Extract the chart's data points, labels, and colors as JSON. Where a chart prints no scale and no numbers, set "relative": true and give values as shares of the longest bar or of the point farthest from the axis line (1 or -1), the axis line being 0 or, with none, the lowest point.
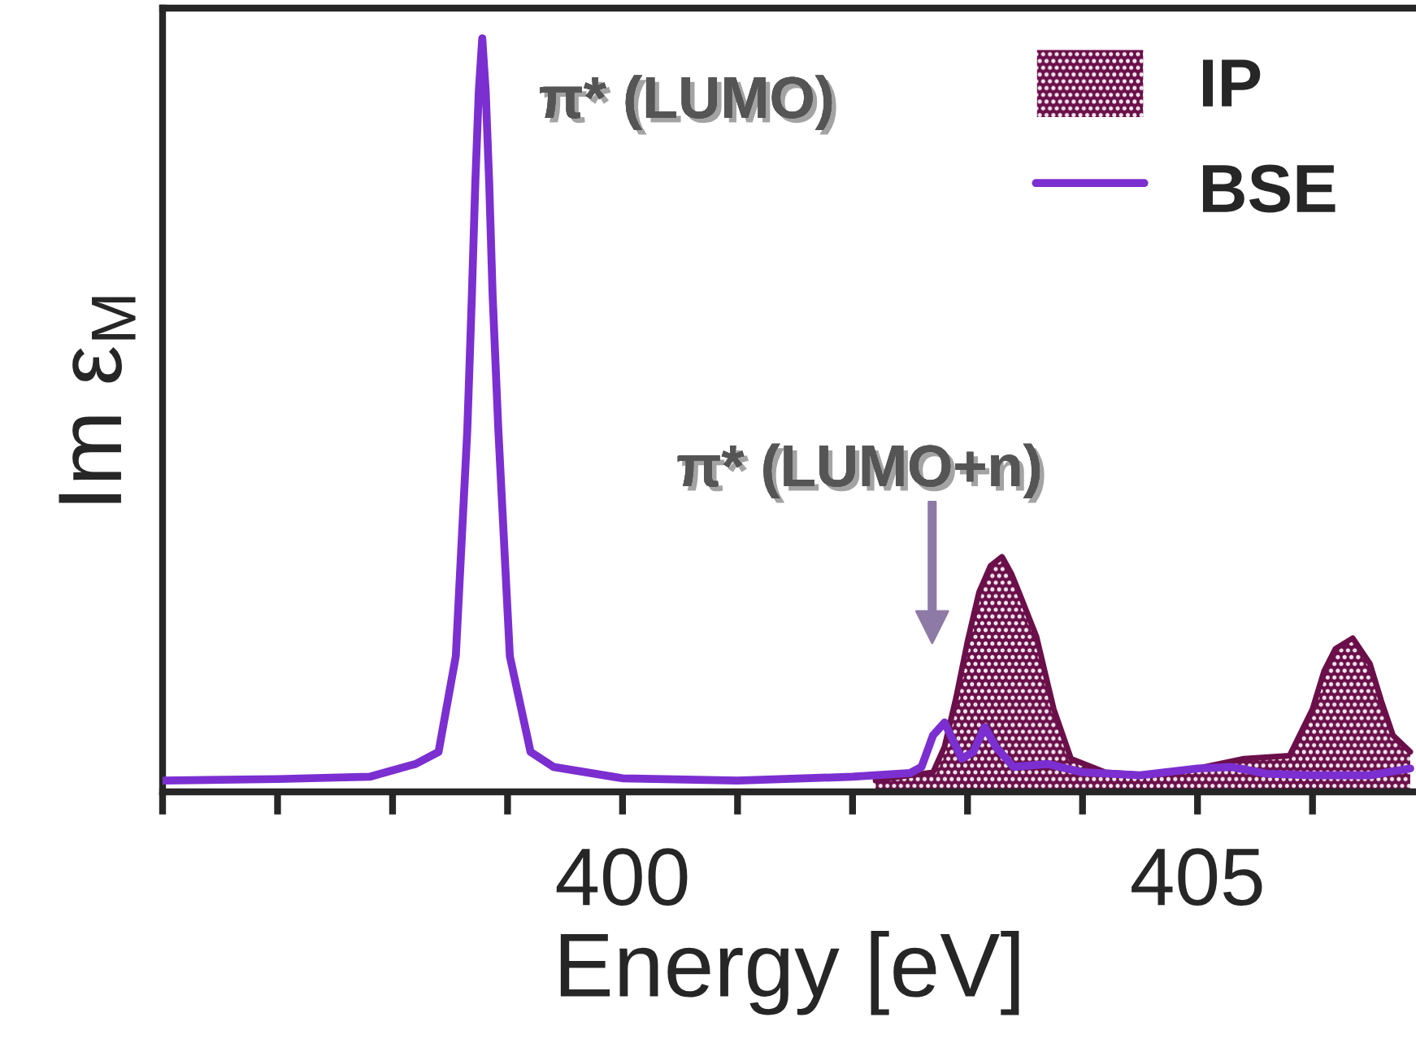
{
  "chart_data": {
    "type": "area",
    "xlabel": "Energy [eV]",
    "ylabel": "Im ε$_{M}$",
    "relative": true,
    "xlim": [
      396,
      406.9
    ],
    "xticks": [
      {
        "value": 396,
        "label": null
      },
      {
        "value": 397,
        "label": null
      },
      {
        "value": 398,
        "label": null
      },
      {
        "value": 399,
        "label": null
      },
      400,
      {
        "value": 401,
        "label": null
      },
      {
        "value": 402,
        "label": null
      },
      {
        "value": 403,
        "label": null
      },
      {
        "value": 404,
        "label": null
      },
      405,
      {
        "value": 406,
        "label": null
      }
    ],
    "legend": "top right",
    "grid": false,
    "annotations": [
      "π* (LUMO)",
      "π* (LUMO+n)"
    ],
    "series": [
      {
        "name": "IP",
        "color": "#6b0f4a",
        "x": [
          402.2,
          402.4,
          402.7,
          402.8,
          402.9,
          403.0,
          403.1,
          403.2,
          403.3,
          403.38,
          403.45,
          403.6,
          403.75,
          403.9,
          404.2,
          404.6,
          405.0,
          405.4,
          405.8,
          406.0,
          406.1,
          406.2,
          406.35,
          406.5,
          406.6,
          406.7,
          406.85
        ],
        "values": [
          0.015,
          0.02,
          0.026,
          0.06,
          0.125,
          0.2,
          0.265,
          0.3,
          0.312,
          0.29,
          0.264,
          0.206,
          0.11,
          0.044,
          0.026,
          0.022,
          0.031,
          0.044,
          0.048,
          0.11,
          0.16,
          0.19,
          0.204,
          0.17,
          0.12,
          0.075,
          0.053
        ]
      },
      {
        "name": "BSE",
        "type": "line",
        "color": "#7b2fd0",
        "x": [
          396.0,
          397.0,
          397.8,
          398.2,
          398.4,
          398.55,
          398.65,
          398.69,
          398.72,
          398.75,
          398.78,
          398.81,
          398.84,
          398.87,
          398.92,
          399.02,
          399.2,
          399.4,
          400.0,
          401.0,
          402.0,
          402.5,
          402.6,
          402.7,
          402.8,
          402.95,
          403.05,
          403.15,
          403.25,
          403.4,
          403.7,
          404.0,
          404.5,
          405.0,
          405.3,
          405.6,
          406.0,
          406.5,
          406.85
        ],
        "values": [
          0.015,
          0.017,
          0.02,
          0.037,
          0.053,
          0.18,
          0.48,
          0.66,
          0.81,
          0.93,
          1.0,
          0.93,
          0.81,
          0.66,
          0.48,
          0.18,
          0.053,
          0.033,
          0.018,
          0.015,
          0.02,
          0.025,
          0.033,
          0.075,
          0.092,
          0.044,
          0.053,
          0.086,
          0.059,
          0.033,
          0.037,
          0.026,
          0.022,
          0.031,
          0.033,
          0.024,
          0.022,
          0.022,
          0.031
        ]
      }
    ]
  }
}
